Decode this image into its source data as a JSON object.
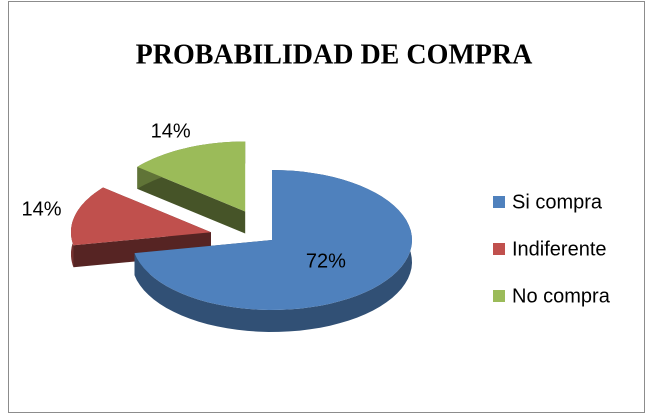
{
  "chart_data": {
    "type": "pie3d",
    "title": "PROBABILIDAD DE COMPRA",
    "categories": [
      "Si compra",
      "Indiferente",
      "No compra"
    ],
    "values": [
      72,
      14,
      14
    ],
    "value_labels": [
      "72%",
      "14%",
      "14%"
    ],
    "colors": [
      "#4f81bd",
      "#c0504d",
      "#9bbb59"
    ],
    "legend": "right"
  }
}
